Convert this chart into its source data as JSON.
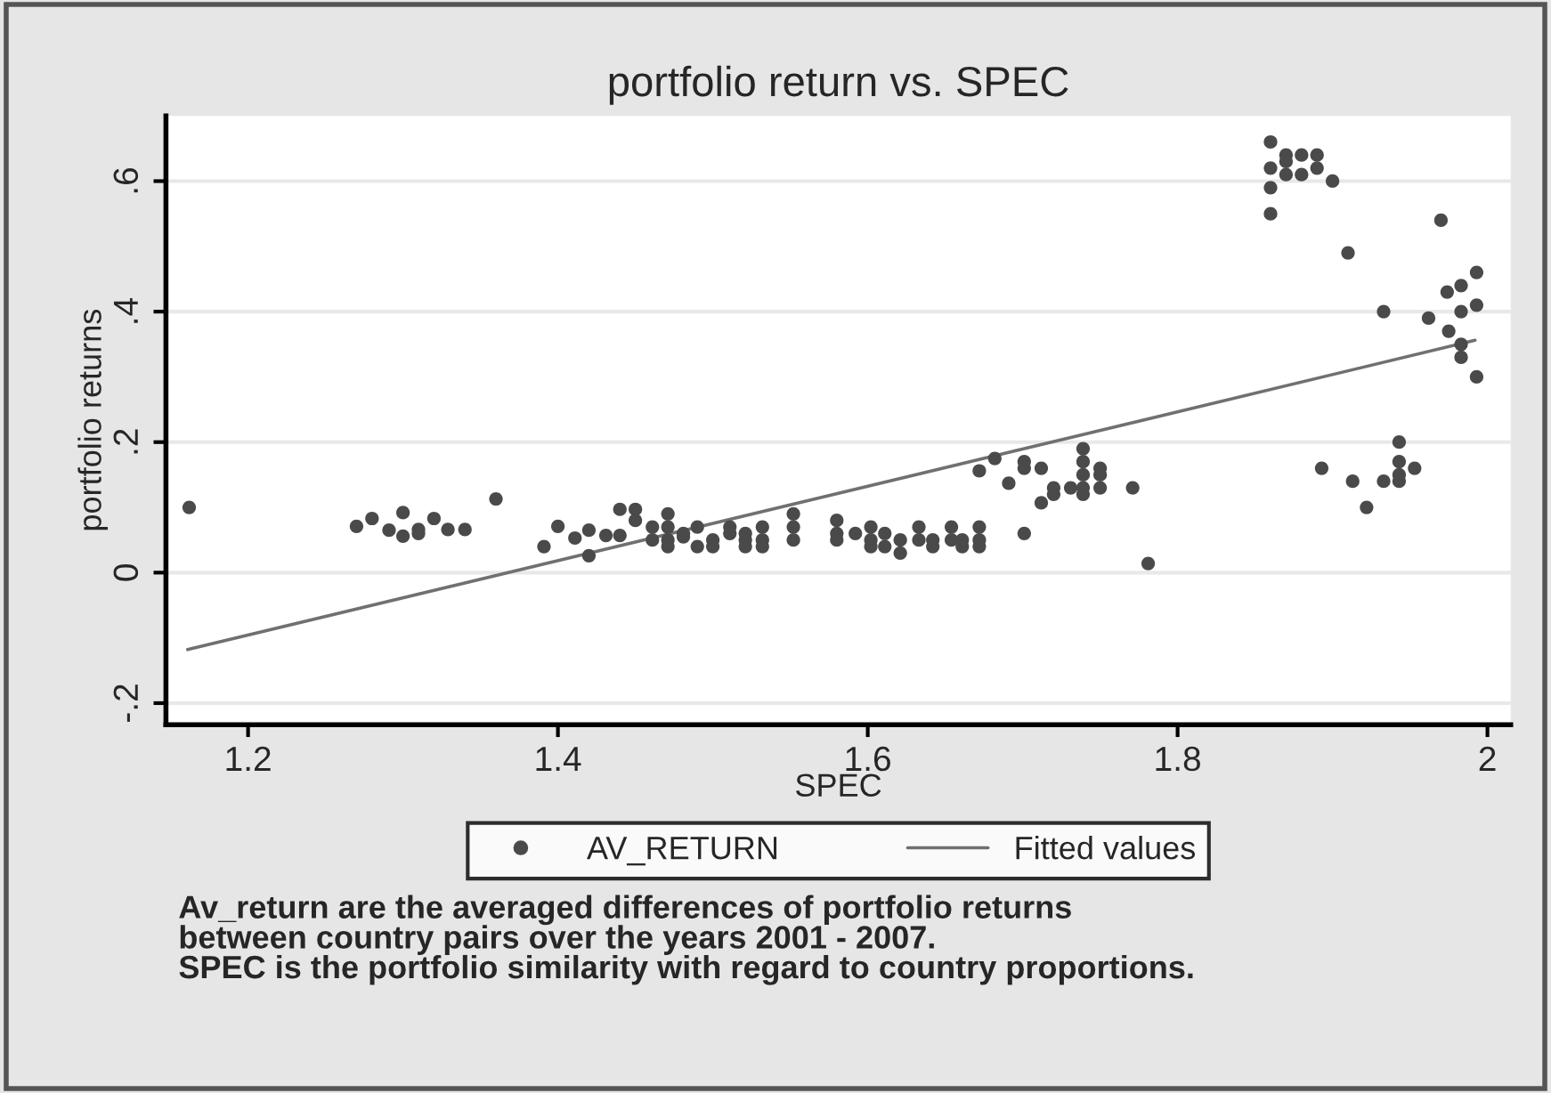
{
  "chart_data": {
    "type": "scatter",
    "title": "portfolio return vs. SPEC",
    "xlabel": "SPEC",
    "ylabel": "portfolio returns",
    "xlim": [
      1.147,
      2.015
    ],
    "ylim": [
      -0.233,
      0.7
    ],
    "xticks": [
      1.2,
      1.4,
      1.6,
      1.8,
      2
    ],
    "yticks": [
      {
        "value": -0.2,
        "label": "-.2"
      },
      0,
      {
        "value": 0.2,
        "label": ".2"
      },
      {
        "value": 0.4,
        "label": ".4"
      },
      {
        "value": 0.6,
        "label": ".6"
      }
    ],
    "grid": "y",
    "legend": "bottom",
    "series": [
      {
        "name": "AV_RETURN",
        "marker": "circle",
        "color": "#4a4a4a",
        "x": [
          1.162,
          1.27,
          1.28,
          1.291,
          1.3,
          1.3,
          1.31,
          1.31,
          1.32,
          1.329,
          1.34,
          1.36,
          1.391,
          1.4,
          1.411,
          1.42,
          1.42,
          1.431,
          1.44,
          1.44,
          1.45,
          1.45,
          1.461,
          1.461,
          1.471,
          1.471,
          1.471,
          1.471,
          1.481,
          1.481,
          1.49,
          1.49,
          1.5,
          1.5,
          1.511,
          1.511,
          1.521,
          1.521,
          1.521,
          1.532,
          1.532,
          1.532,
          1.552,
          1.552,
          1.552,
          1.58,
          1.58,
          1.58,
          1.592,
          1.602,
          1.602,
          1.602,
          1.611,
          1.611,
          1.621,
          1.621,
          1.633,
          1.633,
          1.642,
          1.642,
          1.654,
          1.654,
          1.661,
          1.661,
          1.672,
          1.672,
          1.672,
          1.672,
          1.682,
          1.691,
          1.701,
          1.701,
          1.701,
          1.712,
          1.712,
          1.72,
          1.72,
          1.731,
          1.739,
          1.739,
          1.739,
          1.739,
          1.739,
          1.75,
          1.75,
          1.75,
          1.771,
          1.781,
          1.86,
          1.86,
          1.86,
          1.86,
          1.87,
          1.87,
          1.87,
          1.88,
          1.88,
          1.89,
          1.89,
          1.9,
          1.893,
          1.91,
          1.913,
          1.922,
          1.933,
          1.933,
          1.943,
          1.943,
          1.943,
          1.943,
          1.953,
          1.962,
          1.97,
          1.974,
          1.975,
          1.983,
          1.983,
          1.983,
          1.983,
          1.993,
          1.993,
          1.993
        ],
        "values": [
          0.1,
          0.071,
          0.083,
          0.065,
          0.092,
          0.056,
          0.06,
          0.066,
          0.083,
          0.066,
          0.066,
          0.113,
          0.04,
          0.071,
          0.053,
          0.065,
          0.026,
          0.057,
          0.097,
          0.057,
          0.097,
          0.08,
          0.07,
          0.05,
          0.09,
          0.07,
          0.05,
          0.04,
          0.055,
          0.06,
          0.07,
          0.04,
          0.05,
          0.04,
          0.07,
          0.06,
          0.06,
          0.05,
          0.04,
          0.07,
          0.05,
          0.04,
          0.09,
          0.07,
          0.05,
          0.08,
          0.06,
          0.05,
          0.06,
          0.07,
          0.05,
          0.04,
          0.06,
          0.04,
          0.05,
          0.03,
          0.07,
          0.05,
          0.05,
          0.04,
          0.07,
          0.05,
          0.05,
          0.04,
          0.156,
          0.07,
          0.05,
          0.04,
          0.175,
          0.137,
          0.17,
          0.16,
          0.06,
          0.16,
          0.107,
          0.13,
          0.12,
          0.13,
          0.19,
          0.17,
          0.15,
          0.13,
          0.12,
          0.16,
          0.15,
          0.13,
          0.13,
          0.014,
          0.66,
          0.62,
          0.59,
          0.55,
          0.64,
          0.61,
          0.63,
          0.64,
          0.61,
          0.64,
          0.62,
          0.6,
          0.16,
          0.49,
          0.14,
          0.1,
          0.4,
          0.14,
          0.2,
          0.17,
          0.15,
          0.14,
          0.16,
          0.39,
          0.54,
          0.43,
          0.37,
          0.44,
          0.4,
          0.35,
          0.33,
          0.46,
          0.41,
          0.3
        ]
      },
      {
        "name": "Fitted values",
        "type": "line",
        "color": "#707070",
        "x": [
          1.161,
          1.992
        ],
        "values": [
          -0.118,
          0.356
        ]
      }
    ],
    "annotations": [
      "Av_return are the averaged differences of portfolio returns\nbetween country pairs over the years 2001 - 2007.\nSPEC is the portfolio similarity with regard to country proportions."
    ]
  }
}
